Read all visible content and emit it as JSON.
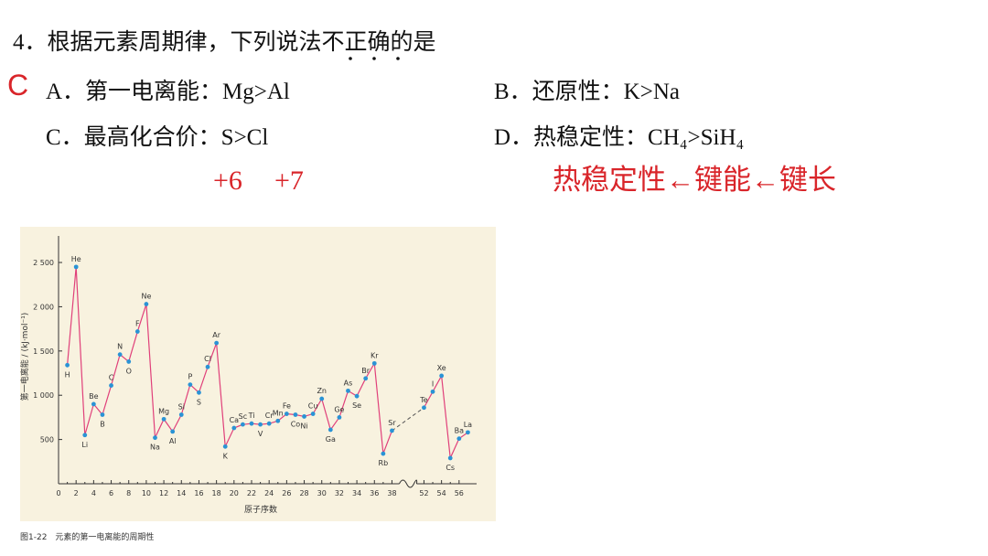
{
  "question": {
    "title": "4．根据元素周期律，下列说法不正确的是",
    "answer": "C",
    "options": [
      "A．第一电离能：Mg>Al",
      "B．还原性：K>Na",
      "C．最高化合价：S>Cl",
      "D．热稳定性：CH₄>SiH₄"
    ]
  },
  "annotations": {
    "oxidation_states": [
      "+6",
      "+7"
    ],
    "note": "热稳定性←键能←键长"
  },
  "chart_data": {
    "type": "line",
    "x_label": "原子序数",
    "y_label": "第一电离能 / (kJ·mol⁻¹)",
    "caption": "图1-22　元素的第一电离能的周期性",
    "x": [
      1,
      2,
      3,
      4,
      5,
      6,
      7,
      8,
      9,
      10,
      11,
      12,
      13,
      14,
      15,
      16,
      17,
      18,
      19,
      20,
      21,
      22,
      23,
      24,
      25,
      26,
      27,
      28,
      29,
      30,
      31,
      32,
      33,
      34,
      35,
      36,
      37,
      38,
      52,
      53,
      54,
      55,
      56,
      57
    ],
    "labels": [
      "H",
      "He",
      "Li",
      "Be",
      "B",
      "C",
      "N",
      "O",
      "F",
      "Ne",
      "Na",
      "Mg",
      "Al",
      "Si",
      "P",
      "S",
      "Cl",
      "Ar",
      "K",
      "Ca",
      "Sc",
      "Ti",
      "V",
      "Cr",
      "Mn",
      "Fe",
      "Co",
      "Ni",
      "Cu",
      "Zn",
      "Ga",
      "Ge",
      "As",
      "Se",
      "Br",
      "Kr",
      "Rb",
      "Sr",
      "Te",
      "I",
      "Xe",
      "Cs",
      "Ba",
      "La"
    ],
    "series": [
      {
        "color": "#e0407a",
        "marker_color": "#2a93d5",
        "values": [
          1340,
          2450,
          550,
          900,
          780,
          1110,
          1460,
          1380,
          1720,
          2030,
          520,
          730,
          590,
          780,
          1120,
          1030,
          1320,
          1590,
          420,
          630,
          670,
          680,
          670,
          680,
          710,
          790,
          780,
          760,
          790,
          960,
          610,
          750,
          1050,
          990,
          1190,
          1360,
          340,
          600,
          860,
          1040,
          1220,
          290,
          510,
          580
        ]
      }
    ],
    "xlim": [
      0,
      58
    ],
    "ylim": [
      0,
      2800
    ],
    "xticks": [
      0,
      2,
      4,
      6,
      8,
      10,
      12,
      14,
      16,
      18,
      20,
      22,
      24,
      26,
      28,
      30,
      32,
      34,
      36,
      38,
      52,
      54,
      56
    ],
    "yticks": [
      {
        "value": 500,
        "label": "500"
      },
      {
        "value": 1000,
        "label": "1 000"
      },
      {
        "value": 1500,
        "label": "1 500"
      },
      {
        "value": 2000,
        "label": "2 000"
      },
      {
        "value": 2500,
        "label": "2 500"
      }
    ]
  }
}
